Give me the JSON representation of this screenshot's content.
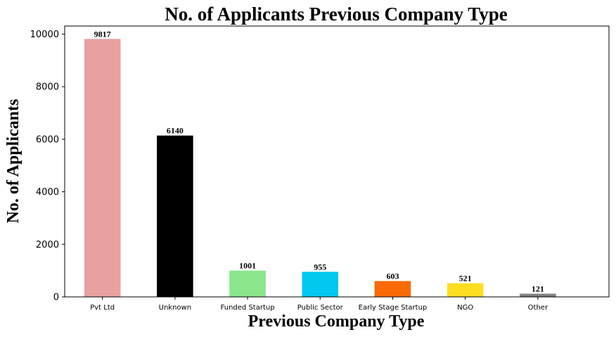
{
  "chart_data": {
    "type": "bar",
    "title": "No. of Applicants Previous Company Type",
    "xlabel": "Previous Company Type",
    "ylabel": "No. of Applicants",
    "categories": [
      "Pvt Ltd",
      "Unknown",
      "Funded Startup",
      "Public Sector",
      "Early Stage Startup",
      "NGO",
      "Other"
    ],
    "values": [
      9817,
      6140,
      1001,
      955,
      603,
      521,
      121
    ],
    "colors": [
      "#e9a0a0",
      "#000000",
      "#8ae68a",
      "#00c8ee",
      "#f76a06",
      "#ffde21",
      "#808080"
    ],
    "yticks": [
      0,
      2000,
      4000,
      6000,
      8000,
      10000
    ],
    "ylim": [
      0,
      10308
    ],
    "grid": false,
    "legend": "none"
  }
}
